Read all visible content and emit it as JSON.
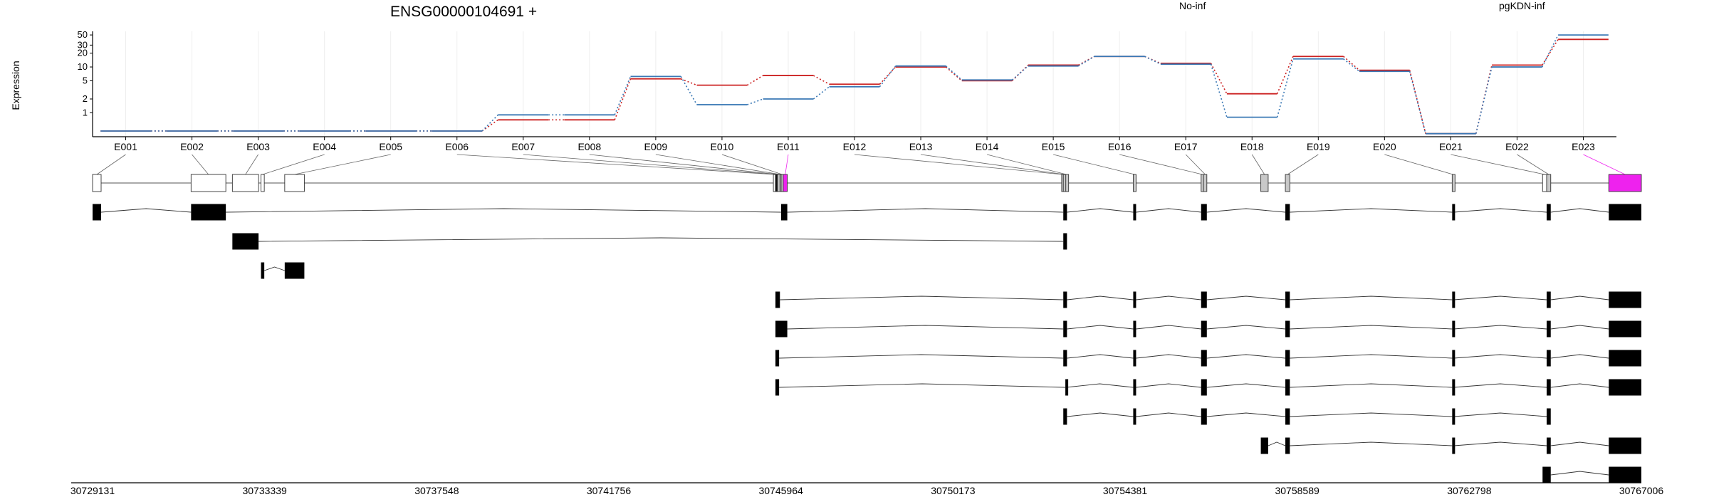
{
  "chart_data": {
    "type": "line",
    "title": "ENSG00000104691 +",
    "ylabel": "Expression",
    "xlabel": "",
    "y_scale": "log",
    "y_ticks": [
      1,
      2,
      5,
      10,
      20,
      30,
      50
    ],
    "ylim": [
      0.3,
      60
    ],
    "grid": true,
    "legend_placement": "top",
    "categories": [
      "E001",
      "E002",
      "E003",
      "E004",
      "E005",
      "E006",
      "E007",
      "E008",
      "E009",
      "E010",
      "E011",
      "E012",
      "E013",
      "E014",
      "E015",
      "E016",
      "E017",
      "E018",
      "E019",
      "E020",
      "E021",
      "E022",
      "E023"
    ],
    "series": [
      {
        "name": "No-inf",
        "color": "#cc2222",
        "values": [
          0.4,
          0.4,
          0.4,
          0.4,
          0.4,
          0.4,
          0.7,
          0.7,
          5.5,
          4.0,
          6.5,
          4.2,
          10.0,
          5.0,
          11.0,
          17.0,
          12.0,
          2.6,
          17.0,
          8.5,
          0.35,
          11.0,
          40.0
        ]
      },
      {
        "name": "pgKDN-inf",
        "color": "#3a78b5",
        "values": [
          0.4,
          0.4,
          0.4,
          0.4,
          0.4,
          0.4,
          0.9,
          0.9,
          6.2,
          1.5,
          2.0,
          3.7,
          10.5,
          5.2,
          10.5,
          17.0,
          11.5,
          0.8,
          15.0,
          8.0,
          0.35,
          10.0,
          50.0
        ]
      }
    ],
    "highlighted_exon": "E023",
    "highlight_color": "#ee22ee",
    "genomic_ticks": [
      "30729131",
      "30733339",
      "30737548",
      "30741756",
      "30745964",
      "30750173",
      "30754381",
      "30758589",
      "30762798",
      "30767006"
    ],
    "genomic_range": [
      30729131,
      30767006
    ],
    "gene_model_exons": [
      {
        "label": "E001",
        "start": 30729131,
        "end": 30729340,
        "shade": "white"
      },
      {
        "label": "E002",
        "start": 30731540,
        "end": 30732390,
        "shade": "white"
      },
      {
        "label": "E003",
        "start": 30732550,
        "end": 30733190,
        "shade": "white"
      },
      {
        "label": "E004",
        "start": 30733250,
        "end": 30733330,
        "shade": "white"
      },
      {
        "label": "E005",
        "start": 30733830,
        "end": 30734310,
        "shade": "white"
      },
      {
        "label": "E006",
        "start": 30745780,
        "end": 30745830,
        "shade": "white"
      },
      {
        "label": "E007",
        "start": 30745830,
        "end": 30745880,
        "shade": "black"
      },
      {
        "label": "E008",
        "start": 30745880,
        "end": 30745940,
        "shade": "gray"
      },
      {
        "label": "E009",
        "start": 30745940,
        "end": 30745970,
        "shade": "gray"
      },
      {
        "label": "E010",
        "start": 30745970,
        "end": 30746020,
        "shade": "gray"
      },
      {
        "label": "E011",
        "start": 30746020,
        "end": 30746120,
        "shade": "magenta"
      },
      {
        "label": "E012",
        "start": 30752830,
        "end": 30752870,
        "shade": "gray"
      },
      {
        "label": "E013",
        "start": 30752870,
        "end": 30752930,
        "shade": "gray"
      },
      {
        "label": "E014",
        "start": 30752930,
        "end": 30752960,
        "shade": "gray"
      },
      {
        "label": "E015",
        "start": 30754580,
        "end": 30754650,
        "shade": "gray"
      },
      {
        "label": "E016",
        "start": 30756240,
        "end": 30756300,
        "shade": "gray"
      },
      {
        "label": "E017",
        "start": 30756300,
        "end": 30756380,
        "shade": "gray"
      },
      {
        "label": "E018",
        "start": 30757700,
        "end": 30757880,
        "shade": "gray"
      },
      {
        "label": "E019",
        "start": 30758300,
        "end": 30758410,
        "shade": "gray"
      },
      {
        "label": "E020",
        "start": 30762380,
        "end": 30762420,
        "shade": "gray"
      },
      {
        "label": "E021",
        "start": 30764590,
        "end": 30764690,
        "shade": "white"
      },
      {
        "label": "E022",
        "start": 30764690,
        "end": 30764790,
        "shade": "gray"
      },
      {
        "label": "E023",
        "start": 30766210,
        "end": 30767006,
        "shade": "magenta"
      }
    ],
    "transcripts": [
      [
        [
          30729131,
          30729340
        ],
        [
          30731540,
          30732390
        ],
        [
          30745970,
          30746120
        ],
        [
          30752870,
          30752960
        ],
        [
          30754580,
          30754650
        ],
        [
          30756240,
          30756380
        ],
        [
          30758300,
          30758410
        ],
        [
          30762380,
          30762420
        ],
        [
          30764690,
          30764790
        ],
        [
          30766210,
          30767006
        ]
      ],
      [
        [
          30732550,
          30733190
        ],
        [
          30752870,
          30752960
        ]
      ],
      [
        [
          30733250,
          30733330
        ],
        [
          30733830,
          30734310
        ]
      ],
      [
        [
          30745830,
          30745940
        ],
        [
          30752870,
          30752960
        ],
        [
          30754580,
          30754650
        ],
        [
          30756240,
          30756380
        ],
        [
          30758300,
          30758410
        ],
        [
          30762380,
          30762420
        ],
        [
          30764690,
          30764790
        ],
        [
          30766210,
          30767006
        ]
      ],
      [
        [
          30745830,
          30746120
        ],
        [
          30752870,
          30752960
        ],
        [
          30754580,
          30754650
        ],
        [
          30756240,
          30756380
        ],
        [
          30758300,
          30758410
        ],
        [
          30762380,
          30762420
        ],
        [
          30764690,
          30764790
        ],
        [
          30766210,
          30767006
        ]
      ],
      [
        [
          30745830,
          30745920
        ],
        [
          30752870,
          30752960
        ],
        [
          30754580,
          30754650
        ],
        [
          30756240,
          30756380
        ],
        [
          30758300,
          30758410
        ],
        [
          30762380,
          30762420
        ],
        [
          30764690,
          30764790
        ],
        [
          30766210,
          30767006
        ]
      ],
      [
        [
          30745830,
          30745920
        ],
        [
          30752920,
          30752940
        ],
        [
          30754580,
          30754650
        ],
        [
          30756240,
          30756380
        ],
        [
          30758300,
          30758410
        ],
        [
          30762380,
          30762420
        ],
        [
          30764690,
          30764790
        ],
        [
          30766210,
          30767006
        ]
      ],
      [
        [
          30752870,
          30752960
        ],
        [
          30754580,
          30754650
        ],
        [
          30756240,
          30756380
        ],
        [
          30758300,
          30758410
        ],
        [
          30762380,
          30762420
        ],
        [
          30764690,
          30764790
        ]
      ],
      [
        [
          30757700,
          30757880
        ],
        [
          30758300,
          30758410
        ],
        [
          30762380,
          30762420
        ],
        [
          30764690,
          30764790
        ],
        [
          30766210,
          30767006
        ]
      ],
      [
        [
          30764590,
          30764790
        ],
        [
          30766210,
          30767006
        ]
      ]
    ]
  }
}
